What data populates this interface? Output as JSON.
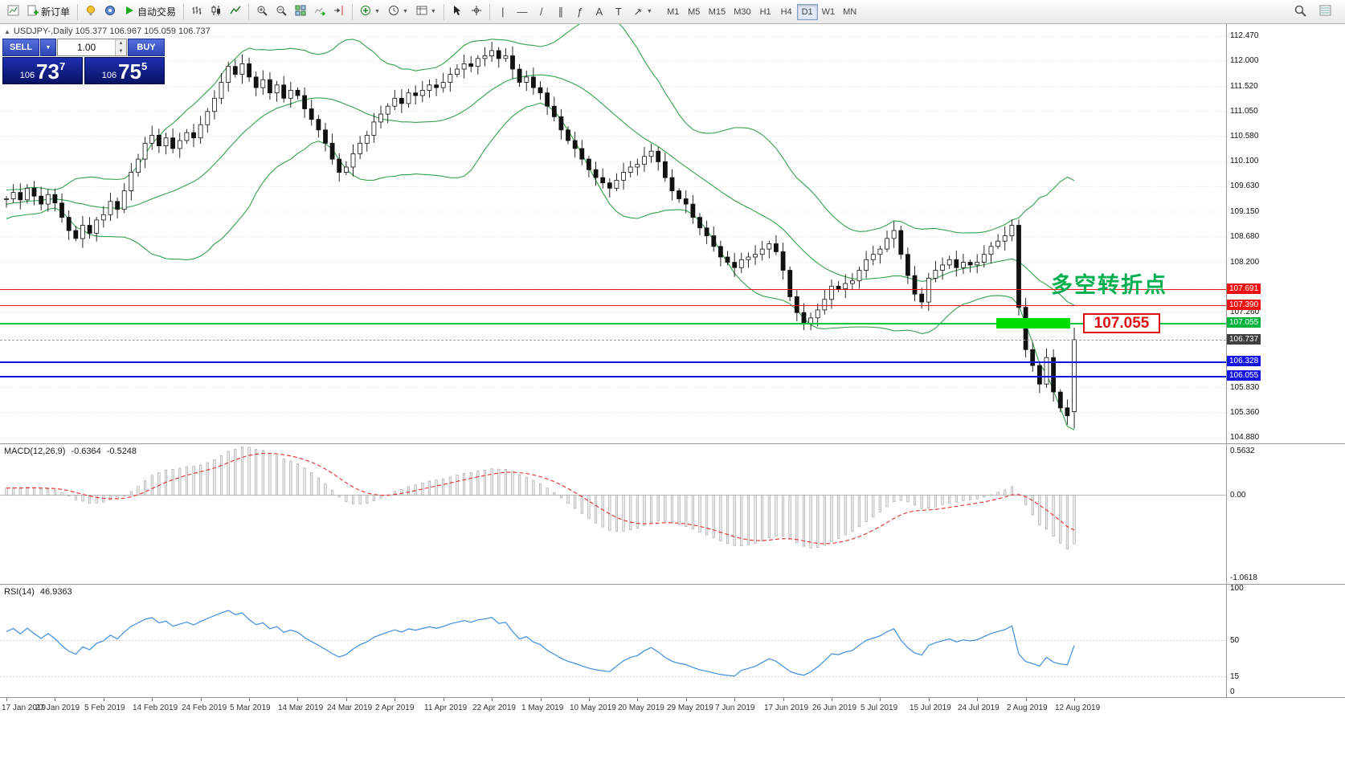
{
  "toolbar": {
    "new_order": "新订单",
    "auto_trading": "自动交易",
    "timeframes": [
      "M1",
      "M5",
      "M15",
      "M30",
      "H1",
      "H4",
      "D1",
      "W1",
      "MN"
    ],
    "active_timeframe": "D1",
    "tool_glyphs": {
      "vertical_line": "|",
      "horizontal_line": "—",
      "trendline": "/",
      "channel": "∥",
      "fibonacci": "ƒ",
      "text": "A",
      "label": "T",
      "arrows": "↗"
    }
  },
  "chart": {
    "title_line": "USDJPY-,Daily 105.377 106.967 105.059 106.737"
  },
  "trade_panel": {
    "sell_label": "SELL",
    "buy_label": "BUY",
    "lot": "1.00",
    "sell_price": {
      "prefix": "106",
      "big": "73",
      "sup": "7"
    },
    "buy_price": {
      "prefix": "106",
      "big": "75",
      "sup": "5"
    }
  },
  "annotations": {
    "turning_point_text": "多空转折点",
    "price_box_label": "107.055"
  },
  "price_scale": {
    "plain_ticks": [
      "112.470",
      "112.000",
      "111.520",
      "111.050",
      "110.580",
      "110.100",
      "109.630",
      "109.150",
      "108.680",
      "108.200",
      "107.260",
      "105.830",
      "105.360",
      "104.880"
    ],
    "badges": [
      {
        "text": "107.691",
        "price": 107.691,
        "color": "#ee1111"
      },
      {
        "text": "107.390",
        "price": 107.39,
        "color": "#ee1111"
      },
      {
        "text": "107.055",
        "price": 107.055,
        "color": "#00b33c"
      },
      {
        "text": "106.737",
        "price": 106.737,
        "color": "#3f3f3f",
        "current": true
      },
      {
        "text": "106.328",
        "price": 106.328,
        "color": "#1414e6"
      },
      {
        "text": "106.055",
        "price": 106.055,
        "color": "#1414e6"
      }
    ]
  },
  "macd": {
    "name": "MACD(12,26,9)",
    "value": "-0.6364",
    "signal": "-0.5248",
    "scale": [
      {
        "t": "0.5632",
        "v": 0.5632
      },
      {
        "t": "0.00",
        "v": 0
      },
      {
        "t": "-1.0618",
        "v": -1.0618
      }
    ]
  },
  "rsi": {
    "name": "RSI(14)",
    "value": "46.9363",
    "scale": [
      {
        "t": "100",
        "v": 100
      },
      {
        "t": "50",
        "v": 50
      },
      {
        "t": "15",
        "v": 15
      },
      {
        "t": "0",
        "v": 0
      }
    ],
    "levels": [
      50,
      15
    ]
  },
  "colors": {
    "bollinger": "#35a14d",
    "bull": "#ffffff",
    "bear": "#111111",
    "wick": "#111111",
    "grid": "#dcdcdc",
    "resistance": "#ee1111",
    "support": "#00c83c",
    "support_rect": "#00dd00",
    "blue_line": "#1414e6",
    "current_badge": "#3f3f3f",
    "macd_hist_fill": "#ececec",
    "macd_hist_stroke": "#9f9f9f",
    "macd_signal": "#e03030",
    "rsi_line": "#3e8ede",
    "annotation": "#00b050"
  },
  "chart_data": {
    "type": "candlestick",
    "symbol": "USDJPY-",
    "timeframe": "Daily",
    "last_ohlc": {
      "open": 105.377,
      "high": 106.967,
      "low": 105.059,
      "close": 106.737
    },
    "current_price": 106.737,
    "y_range": [
      104.78,
      112.7
    ],
    "grid_prices": [
      112.47,
      112.0,
      111.52,
      111.05,
      110.58,
      110.1,
      109.63,
      109.15,
      108.68,
      108.2,
      107.72,
      107.26,
      106.79,
      106.32,
      105.83,
      105.36,
      104.88
    ],
    "x_labels": [
      "17 Jan 2019",
      "27 Jan 2019",
      "5 Feb 2019",
      "14 Feb 2019",
      "24 Feb 2019",
      "5 Mar 2019",
      "14 Mar 2019",
      "24 Mar 2019",
      "2 Apr 2019",
      "11 Apr 2019",
      "22 Apr 2019",
      "1 May 2019",
      "10 May 2019",
      "20 May 2019",
      "29 May 2019",
      "7 Jun 2019",
      "17 Jun 2019",
      "26 Jun 2019",
      "5 Jul 2019",
      "15 Jul 2019",
      "24 Jul 2019",
      "2 Aug 2019",
      "12 Aug 2019"
    ],
    "candles_per_label": 7,
    "warmup": [
      109.0,
      109.2,
      109.1,
      109.3,
      109.15,
      109.05,
      109.2,
      109.35,
      109.25,
      109.4,
      109.3,
      109.45,
      109.35,
      109.5,
      109.4,
      109.3,
      109.45,
      109.35,
      109.4
    ],
    "closes": [
      109.4,
      109.52,
      109.38,
      109.6,
      109.45,
      109.3,
      109.48,
      109.32,
      109.05,
      108.8,
      108.65,
      108.9,
      108.75,
      109.0,
      109.1,
      109.35,
      109.2,
      109.55,
      109.9,
      110.15,
      110.45,
      110.6,
      110.4,
      110.55,
      110.35,
      110.5,
      110.65,
      110.55,
      110.8,
      111.05,
      111.3,
      111.6,
      111.9,
      111.75,
      111.95,
      111.7,
      111.5,
      111.65,
      111.4,
      111.55,
      111.3,
      111.45,
      111.35,
      111.1,
      110.9,
      110.7,
      110.45,
      110.15,
      109.9,
      110.0,
      110.25,
      110.45,
      110.6,
      110.85,
      111.0,
      111.15,
      111.3,
      111.2,
      111.4,
      111.35,
      111.45,
      111.55,
      111.5,
      111.6,
      111.75,
      111.85,
      111.95,
      111.9,
      112.05,
      112.1,
      112.2,
      112.05,
      112.1,
      111.85,
      111.6,
      111.7,
      111.5,
      111.4,
      111.15,
      110.95,
      110.7,
      110.5,
      110.35,
      110.15,
      109.95,
      109.8,
      109.7,
      109.6,
      109.75,
      109.9,
      110.0,
      110.05,
      110.2,
      110.3,
      110.1,
      109.8,
      109.55,
      109.4,
      109.3,
      109.05,
      108.85,
      108.7,
      108.5,
      108.3,
      108.2,
      108.1,
      108.25,
      108.3,
      108.35,
      108.45,
      108.55,
      108.4,
      108.05,
      107.55,
      107.25,
      107.05,
      107.15,
      107.3,
      107.5,
      107.75,
      107.7,
      107.8,
      107.85,
      108.05,
      108.25,
      108.35,
      108.45,
      108.65,
      108.8,
      108.35,
      107.95,
      107.6,
      107.45,
      107.9,
      108.05,
      108.15,
      108.25,
      108.1,
      108.2,
      108.15,
      108.2,
      108.35,
      108.5,
      108.6,
      108.7,
      108.9,
      107.35,
      106.55,
      106.25,
      105.9,
      106.4,
      105.75,
      105.45,
      105.3,
      106.74
    ],
    "overlays": {
      "bollinger_period": 20,
      "bollinger_deviation": 2
    },
    "horizontal_lines": [
      {
        "price": 107.691,
        "color": "#ee1111",
        "w": 1
      },
      {
        "price": 107.39,
        "color": "#ee1111",
        "w": 1
      },
      {
        "price": 107.055,
        "color": "#00c83c",
        "w": 2
      },
      {
        "price": 106.328,
        "color": "#1414e6",
        "w": 2
      },
      {
        "price": 106.055,
        "color": "#1414e6",
        "w": 2
      }
    ],
    "indicators": [
      {
        "name": "MACD",
        "params": "12,26,9",
        "values": [
          -0.6364,
          -0.5248
        ],
        "scale_max": 0.5632,
        "scale_min": -1.0618
      },
      {
        "name": "RSI",
        "params": "14",
        "value": 46.9363
      }
    ]
  }
}
